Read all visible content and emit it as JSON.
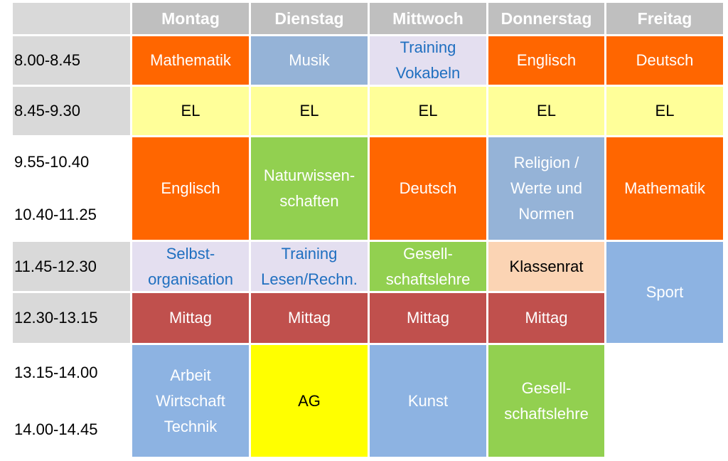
{
  "header": {
    "days": [
      "Montag",
      "Dienstag",
      "Mittwoch",
      "Donnerstag",
      "Freitag"
    ]
  },
  "times": [
    "8.00-8.45",
    "8.45-9.30",
    "9.55-10.40",
    "10.40-11.25",
    "11.45-12.30",
    "12.30-13.15",
    "13.15-14.00",
    "14.00-14.45"
  ],
  "columns": [
    {
      "cells": [
        "Mathematik",
        "EL",
        "Englisch",
        "Selbst-\norganisation",
        "Mittag",
        "Arbeit\nWirtschaft\nTechnik"
      ]
    },
    {
      "cells": [
        "Musik",
        "EL",
        "Naturwissen-\nschaften",
        "Training\nLesen/Rechn.",
        "Mittag",
        "AG"
      ]
    },
    {
      "cells": [
        "Training\nVokabeln",
        "EL",
        "Deutsch",
        "Gesell-\nschaftslehre",
        "Mittag",
        "Kunst"
      ]
    },
    {
      "cells": [
        "Englisch",
        "EL",
        "Religion /\nWerte und\nNormen",
        "Klassenrat",
        "Mittag",
        "Gesell-\nschaftslehre"
      ]
    },
    {
      "cells": [
        "Deutsch",
        "EL",
        "Mathematik",
        "Sport"
      ]
    }
  ]
}
